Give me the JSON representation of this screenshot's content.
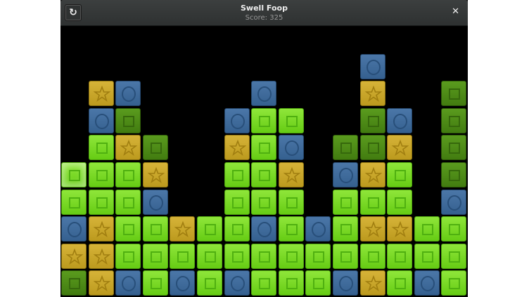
{
  "header": {
    "title": "Swell Foop",
    "score": "Score: 325",
    "restart_icon": "refresh-icon",
    "close_icon": "close-icon",
    "restart_glyph": "↻",
    "close_glyph": "✕"
  },
  "board": {
    "columns": 15,
    "legend": {
      "L": "light-green-square",
      "D": "dark-green-square",
      "Y": "yellow-star",
      "B": "blue-circle",
      ".": "empty"
    },
    "colors": {
      "L": "#7ada28",
      "D": "#4e8c17",
      "Y": "#c9a62a",
      "B": "#3f6b9c",
      "background": "#000000"
    },
    "highlighted": {
      "row": 5,
      "col": 0
    },
    "rows": [
      "...............",
      "...........B...",
      ".YB....B...Y..D",
      ".BD...BLL..DB.D",
      ".LYD..YLB.DDY.D",
      "LLLY..LLY.BYL.D",
      "LLLB..LLL.LLL.B",
      "BYLLYLLBLBLYYLL",
      "YYLLLLLLLLLLLLL",
      "DYBLBLBLLLBYLBL"
    ]
  }
}
